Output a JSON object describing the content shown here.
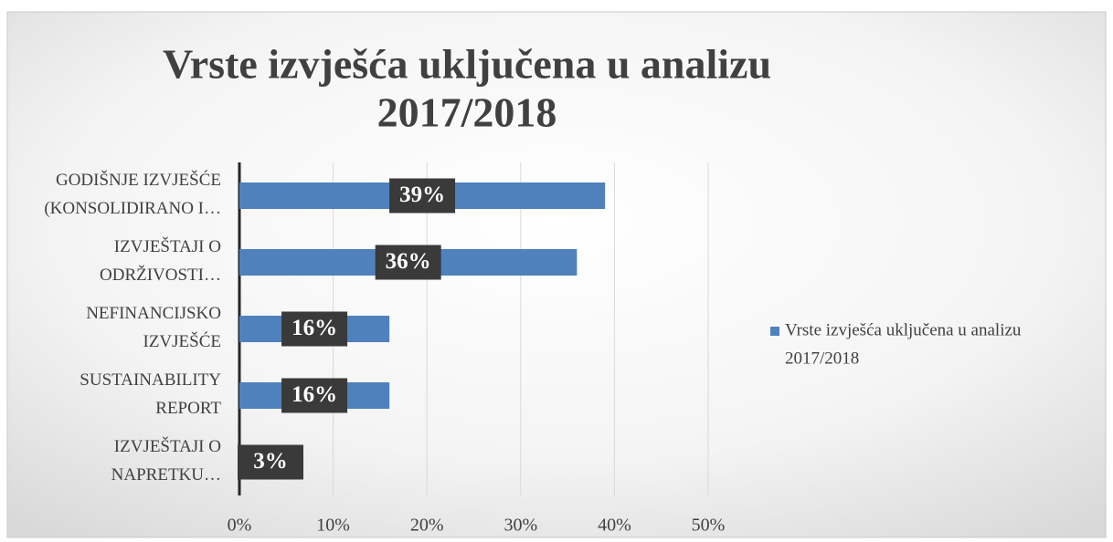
{
  "chart_data": {
    "type": "bar",
    "orientation": "horizontal",
    "title": "Vrste izvješća uključena u analizu 2017/2018",
    "categories": [
      "GODIŠNJE IZVJEŠĆE (KONSOLIDIRANO I…",
      "IZVJEŠTAJI O ODRŽIVOSTI…",
      "NEFINANCIJSKO IZVJEŠĆE",
      "SUSTAINABILITY REPORT",
      "IZVJEŠTAJI O NAPRETKU…"
    ],
    "series": [
      {
        "name": "Vrste izvješća uključena u analizu 2017/2018",
        "color": "#4f81bd",
        "values": [
          39,
          36,
          16,
          16,
          3
        ],
        "value_labels": [
          "39%",
          "36%",
          "16%",
          "16%",
          "3%"
        ]
      }
    ],
    "xlim": [
      0,
      50
    ],
    "xticks": [
      {
        "value": 0,
        "label": "0%"
      },
      {
        "value": 10,
        "label": "10%"
      },
      {
        "value": 20,
        "label": "20%"
      },
      {
        "value": 30,
        "label": "30%"
      },
      {
        "value": 40,
        "label": "40%"
      },
      {
        "value": 50,
        "label": "50%"
      }
    ],
    "grid": true,
    "legend": "right"
  }
}
